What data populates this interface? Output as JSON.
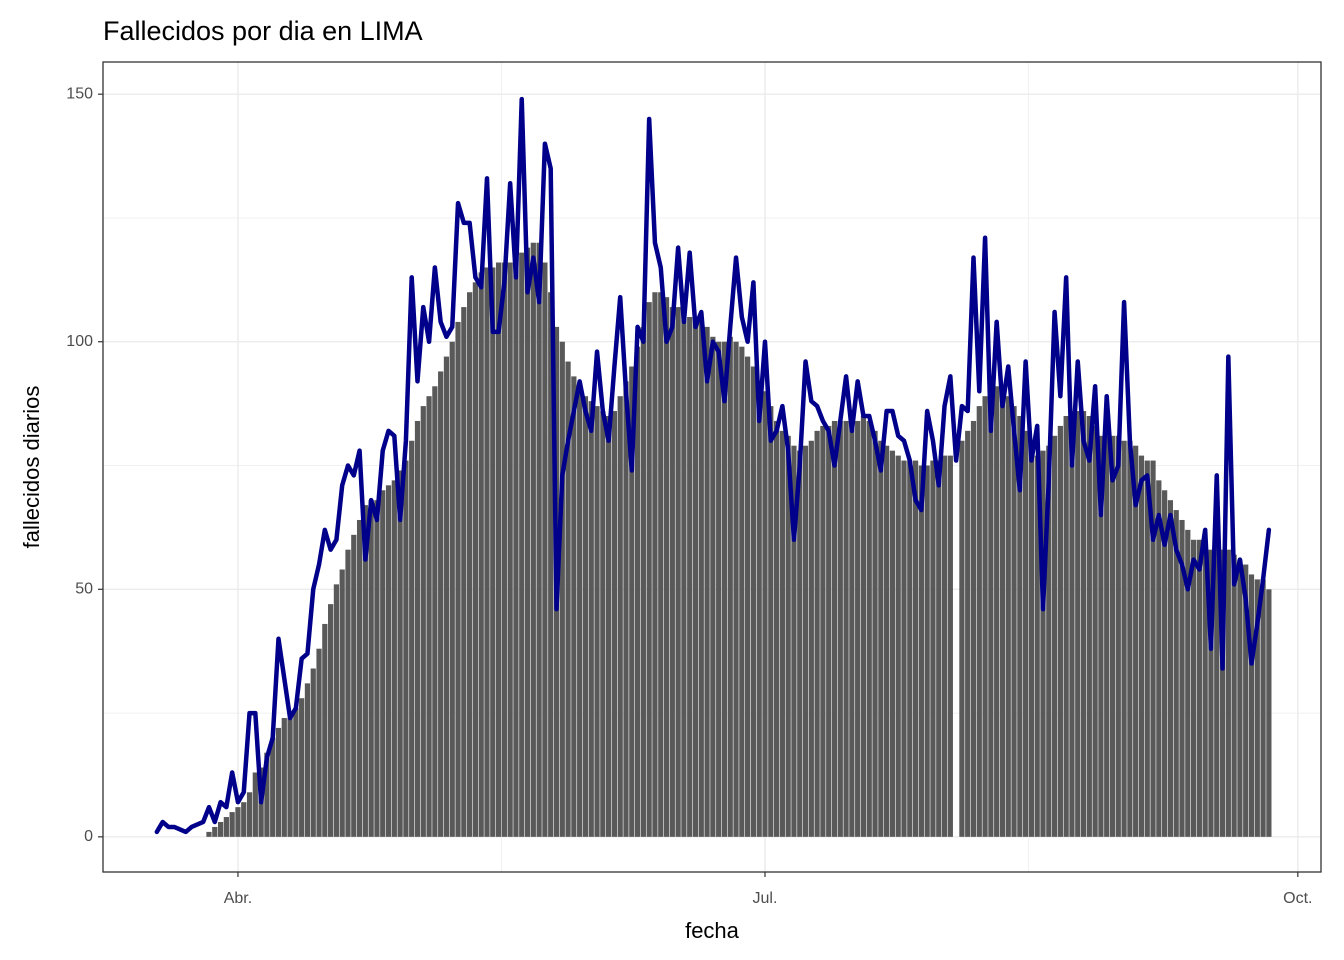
{
  "chart_data": {
    "type": "bar",
    "title": "Fallecidos por dia en LIMA",
    "x_label": "fecha",
    "y_label": "fallecidos diarios",
    "x": [
      0,
      1,
      2,
      3,
      4,
      5,
      6,
      7,
      8,
      9,
      10,
      11,
      12,
      13,
      14,
      15,
      16,
      17,
      18,
      19,
      20,
      21,
      22,
      23,
      24,
      25,
      26,
      27,
      28,
      29,
      30,
      31,
      32,
      33,
      34,
      35,
      36,
      37,
      38,
      39,
      40,
      41,
      42,
      43,
      44,
      45,
      46,
      47,
      48,
      49,
      50,
      51,
      52,
      53,
      54,
      55,
      56,
      57,
      58,
      59,
      60,
      61,
      62,
      63,
      64,
      65,
      66,
      67,
      68,
      69,
      70,
      71,
      72,
      73,
      74,
      75,
      76,
      77,
      78,
      79,
      80,
      81,
      82,
      83,
      84,
      85,
      86,
      87,
      88,
      89,
      90,
      91,
      92,
      93,
      94,
      95,
      96,
      97,
      98,
      99,
      100,
      101,
      102,
      103,
      104,
      105,
      106,
      107,
      108,
      109,
      110,
      111,
      112,
      113,
      114,
      115,
      116,
      117,
      118,
      119,
      120,
      121,
      122,
      123,
      124,
      125,
      126,
      127,
      128,
      129,
      130,
      131,
      132,
      133,
      134,
      135,
      136,
      137,
      138,
      139,
      140,
      141,
      142,
      143,
      144,
      145,
      146,
      147,
      148,
      149,
      150,
      151,
      152,
      153,
      154,
      155,
      156,
      157,
      158,
      159,
      160,
      161,
      162,
      163,
      164,
      165,
      166,
      167,
      168,
      169,
      170,
      171,
      172,
      173,
      174,
      175,
      176,
      177,
      178,
      179,
      180,
      181,
      182,
      183,
      184,
      185,
      186,
      187,
      188,
      189,
      190,
      191,
      192
    ],
    "series": [
      {
        "type": "bar",
        "color": "#595959",
        "values": [
          null,
          null,
          null,
          null,
          null,
          null,
          null,
          null,
          null,
          1,
          2,
          3,
          4,
          5,
          6,
          7,
          9,
          13,
          14,
          17,
          20,
          22,
          24,
          24,
          26,
          28,
          31,
          34,
          38,
          43,
          47,
          51,
          54,
          58,
          61,
          64,
          67,
          68,
          68,
          70,
          71,
          72,
          74,
          76,
          80,
          84,
          87,
          89,
          91,
          94,
          97,
          100,
          104,
          107,
          110,
          112,
          114,
          115,
          115,
          116,
          116,
          116,
          117,
          118,
          119,
          120,
          120,
          116,
          110,
          103,
          100,
          96,
          93,
          91,
          89,
          88,
          87,
          86,
          85,
          86,
          89,
          92,
          95,
          99,
          103,
          108,
          110,
          110,
          109,
          107,
          107,
          106,
          105,
          104,
          104,
          103,
          101,
          100,
          100,
          101,
          100,
          99,
          97,
          95,
          92,
          90,
          87,
          84,
          82,
          81,
          79,
          78,
          79,
          80,
          82,
          83,
          83,
          84,
          84,
          84,
          84,
          84,
          85,
          84,
          82,
          80,
          79,
          78,
          77,
          76,
          76,
          76,
          75,
          75,
          76,
          76,
          77,
          77,
          null,
          80,
          82,
          84,
          87,
          89,
          90,
          91,
          90,
          89,
          87,
          85,
          82,
          79,
          77,
          78,
          79,
          81,
          83,
          85,
          86,
          86,
          86,
          85,
          83,
          81,
          81,
          81,
          81,
          80,
          80,
          79,
          77,
          76,
          76,
          72,
          70,
          68,
          66,
          64,
          62,
          60,
          60,
          59,
          58,
          59,
          58,
          58,
          57,
          56,
          55,
          53,
          52,
          52,
          50
        ]
      },
      {
        "type": "line",
        "color": "#00008b",
        "values": [
          1,
          3,
          2,
          2,
          1.5,
          1,
          2,
          2.5,
          3,
          6,
          3,
          7,
          6,
          13,
          7,
          9,
          25,
          25,
          7,
          16,
          20,
          40,
          32,
          24,
          26,
          36,
          37,
          50,
          55,
          62,
          58,
          60,
          71,
          75,
          73,
          78,
          56,
          68,
          64,
          78,
          82,
          81,
          64,
          80,
          113,
          92,
          107,
          100,
          115,
          104,
          101,
          103,
          128,
          124,
          124,
          113,
          111,
          133,
          102,
          102,
          112,
          132,
          113,
          149,
          110,
          117,
          108,
          140,
          135,
          46,
          73,
          80,
          86,
          92,
          86,
          82,
          98,
          86,
          80,
          95,
          109,
          90,
          74,
          103,
          100,
          145,
          120,
          115,
          100,
          103,
          119,
          104,
          118,
          103,
          106,
          92,
          100,
          98,
          88,
          103,
          117,
          105,
          100,
          112,
          84,
          100,
          80,
          82,
          87,
          78,
          60,
          75,
          96,
          88,
          87,
          84,
          82,
          75,
          84,
          93,
          82,
          92,
          85,
          85,
          80,
          74,
          86,
          86,
          81,
          80,
          76,
          68,
          66,
          86,
          80,
          71,
          87,
          93,
          76,
          87,
          86,
          117,
          90,
          121,
          82,
          104,
          87,
          95,
          82,
          70,
          96,
          76,
          83,
          46,
          72,
          106,
          89,
          113,
          75,
          96,
          80,
          76,
          91,
          65,
          89,
          72,
          75,
          108,
          80,
          67,
          72,
          73,
          60,
          65,
          59,
          65,
          58,
          55,
          50,
          56,
          54,
          62,
          38,
          73,
          34,
          97,
          51,
          56,
          48,
          35,
          43,
          52,
          62
        ]
      }
    ],
    "xlim": [
      -9.3,
      201
    ],
    "xticks": [
      {
        "value": 14,
        "label": "Abr."
      },
      {
        "value": 105,
        "label": "Jul."
      },
      {
        "value": 197,
        "label": "Oct."
      }
    ],
    "ylim": [
      -7.1,
      156.5
    ],
    "yticks": [
      0,
      50,
      100,
      150
    ],
    "grid": true
  }
}
